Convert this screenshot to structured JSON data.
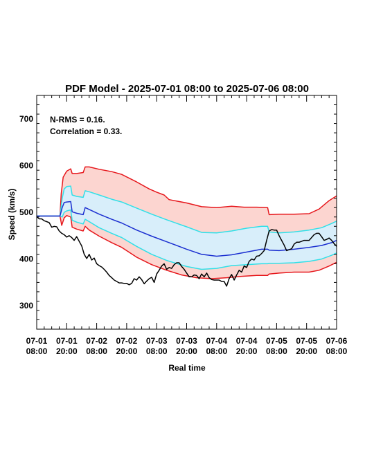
{
  "chart_data": {
    "type": "line",
    "title": "PDF Model - 2025-07-01 08:00 to 2025-07-06 08:00",
    "xlabel": "Real time",
    "ylabel": "Speed (km/s)",
    "xlim_hours": [
      0,
      120
    ],
    "ylim": [
      250,
      750
    ],
    "yticks": [
      300,
      400,
      500,
      600,
      700
    ],
    "xticks": [
      {
        "hour": 0,
        "date": "07-01",
        "time": "08:00"
      },
      {
        "hour": 12,
        "date": "07-01",
        "time": "20:00"
      },
      {
        "hour": 24,
        "date": "07-02",
        "time": "08:00"
      },
      {
        "hour": 36,
        "date": "07-02",
        "time": "20:00"
      },
      {
        "hour": 48,
        "date": "07-03",
        "time": "08:00"
      },
      {
        "hour": 60,
        "date": "07-03",
        "time": "20:00"
      },
      {
        "hour": 72,
        "date": "07-04",
        "time": "08:00"
      },
      {
        "hour": 84,
        "date": "07-04",
        "time": "20:00"
      },
      {
        "hour": 96,
        "date": "07-05",
        "time": "08:00"
      },
      {
        "hour": 108,
        "date": "07-05",
        "time": "20:00"
      },
      {
        "hour": 120,
        "date": "07-06",
        "time": "08:00"
      }
    ],
    "annotations": [
      "N-RMS = 0.16.",
      "Correlation = 0.33."
    ],
    "colors": {
      "outer_band": "#e6161b",
      "outer_fill": "#fcd5d0",
      "inner_band": "#30e0e8",
      "inner_fill": "#d8eefa",
      "median": "#1a2ed0",
      "observed": "#000000"
    },
    "series": [
      {
        "key": "upper_outer",
        "x": [
          0,
          9.3,
          9.8,
          10.6,
          12,
          13.6,
          14.2,
          16,
          18.6,
          19.4,
          21,
          25,
          30,
          34,
          40,
          45,
          48,
          51,
          53,
          60,
          66,
          72,
          78,
          83,
          88,
          92.4,
          93,
          97,
          103,
          109,
          113,
          117,
          120
        ],
        "y": [
          492,
          492,
          540,
          575,
          588,
          593,
          583,
          583,
          585,
          597,
          597,
          592,
          587,
          581,
          565,
          550,
          543,
          537,
          527,
          520,
          512,
          510,
          513,
          511,
          511,
          510,
          495,
          496,
          496,
          497,
          507,
          525,
          535
        ]
      },
      {
        "key": "upper_inner",
        "x": [
          0,
          9.3,
          10.2,
          11,
          12,
          13.6,
          14.2,
          16,
          18.6,
          19.4,
          21,
          25,
          30,
          34,
          40,
          46,
          52,
          60,
          66,
          72,
          78,
          84,
          90,
          92.4,
          93,
          97,
          103,
          109,
          114,
          118,
          120
        ],
        "y": [
          492,
          492,
          530,
          550,
          555,
          556,
          537,
          534,
          532,
          546,
          544,
          537,
          528,
          522,
          509,
          496,
          484,
          469,
          457,
          456,
          460,
          466,
          470,
          470,
          458,
          456,
          458,
          462,
          467,
          476,
          481
        ]
      },
      {
        "key": "median",
        "x": [
          0,
          9.3,
          10.2,
          11,
          12,
          13.6,
          14.2,
          16,
          18.6,
          19.4,
          21,
          25,
          30,
          34,
          40,
          46,
          52,
          60,
          66,
          72,
          78,
          84,
          90,
          92.4,
          93,
          97,
          103,
          109,
          114,
          118,
          120
        ],
        "y": [
          492,
          492,
          510,
          521,
          522,
          523,
          501,
          498,
          495,
          510,
          506,
          496,
          485,
          477,
          462,
          449,
          437,
          421,
          410,
          406,
          409,
          415,
          421,
          421,
          419,
          418,
          421,
          425,
          429,
          435,
          440
        ]
      },
      {
        "key": "lower_inner",
        "x": [
          0,
          9.3,
          10.2,
          11,
          12,
          13.6,
          14.2,
          16,
          18.6,
          19.4,
          21,
          25,
          30,
          34,
          40,
          46,
          52,
          60,
          66,
          72,
          78,
          84,
          90,
          92.4,
          93,
          97,
          103,
          109,
          114,
          118,
          120
        ],
        "y": [
          492,
          492,
          490,
          500,
          503,
          505,
          483,
          479,
          475,
          485,
          480,
          467,
          455,
          446,
          427,
          410,
          397,
          384,
          378,
          380,
          386,
          388,
          390,
          390,
          391,
          391,
          392,
          395,
          400,
          408,
          413
        ]
      },
      {
        "key": "lower_outer",
        "x": [
          0,
          9.3,
          10,
          11,
          12,
          13.6,
          14.2,
          16,
          18.6,
          19.4,
          21,
          25,
          30,
          34,
          40,
          46,
          52,
          58,
          64,
          70,
          76,
          82,
          88,
          92.4,
          93,
          97,
          103,
          109,
          113,
          117,
          120
        ],
        "y": [
          492,
          492,
          472,
          488,
          493,
          490,
          468,
          464,
          460,
          470,
          462,
          449,
          435,
          425,
          404,
          388,
          376,
          366,
          360,
          358,
          360,
          363,
          365,
          365,
          368,
          370,
          372,
          372,
          376,
          385,
          393
        ]
      },
      {
        "key": "observed",
        "x": [
          0,
          1,
          2,
          3,
          4,
          5,
          6,
          7,
          8,
          9,
          10,
          11,
          12,
          13,
          14,
          15,
          16,
          17,
          18,
          19,
          20,
          21,
          22,
          23,
          24,
          25,
          26,
          27,
          28,
          29,
          30,
          31,
          32,
          33,
          34,
          35,
          36,
          37,
          38,
          39,
          40,
          41,
          42,
          43,
          44,
          45,
          46,
          47,
          48,
          49,
          50,
          51,
          52,
          53,
          54,
          55,
          56,
          57,
          58,
          59,
          60,
          61,
          62,
          63,
          64,
          65,
          66,
          67,
          68,
          69,
          70,
          71,
          72,
          73,
          74,
          75,
          76,
          77,
          78,
          79,
          80,
          81,
          82,
          83,
          84,
          85,
          86,
          87,
          88,
          89,
          90,
          91,
          92,
          93,
          94,
          95,
          96,
          97,
          98,
          99,
          100,
          101,
          102,
          103,
          104,
          105,
          106,
          107,
          108,
          109,
          110,
          111,
          112,
          113,
          114,
          115,
          116,
          117,
          118,
          119,
          120
        ],
        "y": [
          491,
          486,
          486,
          482,
          480,
          478,
          468,
          470,
          469,
          460,
          455,
          452,
          447,
          450,
          446,
          440,
          448,
          438,
          428,
          410,
          401,
          410,
          398,
          402,
          390,
          386,
          383,
          378,
          372,
          365,
          360,
          355,
          352,
          349,
          349,
          348,
          348,
          345,
          348,
          358,
          355,
          362,
          356,
          347,
          353,
          358,
          361,
          350,
          368,
          376,
          385,
          390,
          378,
          382,
          380,
          388,
          392,
          392,
          384,
          378,
          370,
          362,
          362,
          366,
          365,
          358,
          368,
          362,
          370,
          360,
          356,
          355,
          355,
          355,
          352,
          352,
          342,
          358,
          367,
          355,
          366,
          376,
          372,
          385,
          382,
          395,
          400,
          398,
          406,
          407,
          412,
          418,
          440,
          460,
          463,
          462,
          462,
          450,
          440,
          430,
          418,
          420,
          422,
          432,
          436,
          436,
          438,
          440,
          440,
          440,
          446,
          452,
          455,
          455,
          448,
          440,
          442,
          445,
          440,
          433,
          427
        ]
      }
    ]
  }
}
